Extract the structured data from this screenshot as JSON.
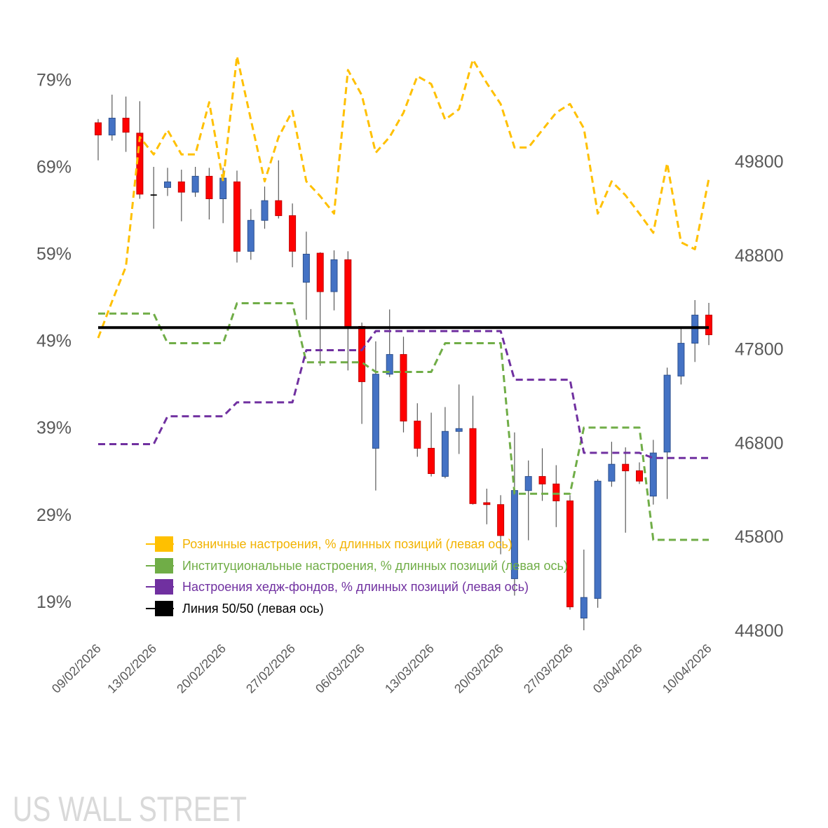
{
  "watermark": "US WALL STREET",
  "chart_data": {
    "type": "line",
    "title": "",
    "xlabel": "",
    "ylabel": "",
    "grid": false,
    "legend_position": "bottom-left",
    "x_range": [
      0,
      44
    ],
    "x_tick_labels": [
      {
        "index": 0,
        "label": "09/02/2026"
      },
      {
        "index": 4,
        "label": "13/02/2026"
      },
      {
        "index": 9,
        "label": "20/02/2026"
      },
      {
        "index": 14,
        "label": "27/02/2026"
      },
      {
        "index": 19,
        "label": "06/03/2026"
      },
      {
        "index": 24,
        "label": "13/03/2026"
      },
      {
        "index": 29,
        "label": "20/03/2026"
      },
      {
        "index": 34,
        "label": "27/03/2026"
      },
      {
        "index": 39,
        "label": "03/04/2026"
      },
      {
        "index": 44,
        "label": "10/04/2026"
      }
    ],
    "left_axis": {
      "range": [
        15.2,
        79.9
      ],
      "ticks": [
        79,
        69,
        59,
        49,
        39,
        29,
        19
      ],
      "tick_labels": [
        "79%",
        "69%",
        "59%",
        "49%",
        "39%",
        "29%",
        "19%"
      ]
    },
    "right_axis": {
      "range": [
        44800,
        50800
      ],
      "ticks": [
        49800,
        48800,
        47800,
        46800,
        45800,
        44800
      ],
      "tick_labels": [
        "49800",
        "48800",
        "47800",
        "46800",
        "45800",
        "44800"
      ]
    },
    "candlesticks": {
      "up_color": "#4472C4",
      "up_border": "#2F528F",
      "down_color": "#FF0000",
      "down_border": "#C00000",
      "doji_color": "#000000",
      "wick_color": "#595959",
      "ohlc": [
        [
          50210,
          50250,
          49810,
          50080
        ],
        [
          50080,
          50510,
          50020,
          50260
        ],
        [
          50260,
          50490,
          49900,
          50110
        ],
        [
          50100,
          50440,
          49400,
          49450
        ],
        [
          49440,
          49740,
          49080,
          49440
        ],
        [
          49520,
          49730,
          49430,
          49580
        ],
        [
          49580,
          49710,
          49160,
          49470
        ],
        [
          49470,
          49740,
          49420,
          49640
        ],
        [
          49640,
          49730,
          49180,
          49400
        ],
        [
          49400,
          49730,
          49140,
          49620
        ],
        [
          49580,
          49700,
          48720,
          48840
        ],
        [
          48840,
          49290,
          48750,
          49170
        ],
        [
          49170,
          49530,
          49080,
          49380
        ],
        [
          49380,
          49810,
          49190,
          49220
        ],
        [
          49220,
          49350,
          48670,
          48840
        ],
        [
          48510,
          49050,
          48110,
          48810
        ],
        [
          48820,
          48830,
          47620,
          48410
        ],
        [
          48410,
          48850,
          48210,
          48750
        ],
        [
          48750,
          48840,
          47570,
          48040
        ],
        [
          48040,
          48080,
          47000,
          47450
        ],
        [
          46740,
          47880,
          46290,
          47530
        ],
        [
          47530,
          48220,
          47500,
          47740
        ],
        [
          47740,
          47930,
          46910,
          47030
        ],
        [
          47030,
          47220,
          46650,
          46740
        ],
        [
          46740,
          47120,
          46440,
          46470
        ],
        [
          46440,
          47180,
          46420,
          46920
        ],
        [
          46920,
          47420,
          46680,
          46950
        ],
        [
          46950,
          47300,
          46140,
          46150
        ],
        [
          46160,
          46310,
          45930,
          46140
        ],
        [
          46140,
          46240,
          45610,
          45810
        ],
        [
          45350,
          46910,
          45170,
          46290
        ],
        [
          46290,
          46610,
          45760,
          46440
        ],
        [
          46440,
          46740,
          46180,
          46360
        ],
        [
          46360,
          46560,
          45900,
          46180
        ],
        [
          46180,
          46240,
          45020,
          45050
        ],
        [
          44930,
          45660,
          44800,
          45150
        ],
        [
          45140,
          46410,
          45040,
          46390
        ],
        [
          46390,
          46810,
          46330,
          46570
        ],
        [
          46570,
          46750,
          45840,
          46500
        ],
        [
          46500,
          46590,
          46360,
          46390
        ],
        [
          46230,
          46830,
          46140,
          46690
        ],
        [
          46700,
          47600,
          46200,
          47520
        ],
        [
          47510,
          48020,
          47420,
          47860
        ],
        [
          47860,
          48320,
          47660,
          48160
        ],
        [
          48160,
          48290,
          47840,
          47950
        ]
      ]
    },
    "series": [
      {
        "name": "Розничные настроения, % длинных позиций (левая ось)",
        "color": "#FFC000",
        "text_color": "#F2B300",
        "dashed": true,
        "values": [
          48.8,
          53.0,
          57.0,
          71.9,
          69.9,
          72.7,
          69.9,
          69.9,
          75.9,
          66.8,
          81.2,
          73.9,
          66.8,
          71.9,
          74.9,
          66.8,
          65.1,
          63.1,
          79.6,
          76.7,
          70.1,
          71.9,
          74.7,
          78.9,
          78.0,
          73.9,
          75.1,
          80.8,
          78.1,
          75.7,
          70.7,
          70.7,
          72.7,
          74.7,
          75.7,
          72.9,
          63.1,
          66.8,
          65.2,
          63.1,
          60.9,
          68.9,
          59.8,
          59.0,
          67.1
        ]
      },
      {
        "name": "Институциональные настроения, % длинных позиций (левая ось)",
        "color": "#70AD47",
        "text_color": "#70AD47",
        "dashed": true,
        "values": [
          51.6,
          51.6,
          51.6,
          51.6,
          51.6,
          48.2,
          48.2,
          48.2,
          48.2,
          48.2,
          52.8,
          52.8,
          52.8,
          52.8,
          52.8,
          46.0,
          46.0,
          46.0,
          46.0,
          46.0,
          44.9,
          44.9,
          44.9,
          44.9,
          44.9,
          48.2,
          48.2,
          48.2,
          48.2,
          48.2,
          30.9,
          30.9,
          30.9,
          30.9,
          30.9,
          38.5,
          38.5,
          38.5,
          38.5,
          38.5,
          25.6,
          25.6,
          25.6,
          25.6,
          25.6
        ]
      },
      {
        "name": "Настроения хедж-фондов, % длинных позиций (левая ось)",
        "color": "#7030A0",
        "text_color": "#7030A0",
        "dashed": true,
        "values": [
          36.6,
          36.6,
          36.6,
          36.6,
          36.6,
          39.8,
          39.8,
          39.8,
          39.8,
          39.8,
          41.4,
          41.4,
          41.4,
          41.4,
          41.4,
          47.4,
          47.4,
          47.4,
          47.4,
          47.4,
          49.6,
          49.6,
          49.6,
          49.6,
          49.6,
          49.6,
          49.6,
          49.6,
          49.6,
          49.6,
          44.0,
          44.0,
          44.0,
          44.0,
          44.0,
          35.6,
          35.6,
          35.6,
          35.6,
          35.6,
          35.0,
          35.0,
          35.0,
          35.0,
          35.0
        ]
      },
      {
        "name": "Линия 50/50 (левая ось)",
        "color": "#000000",
        "text_color": "#000000",
        "dashed": false,
        "x": [
          0,
          44
        ],
        "values": [
          50,
          50
        ]
      }
    ]
  }
}
